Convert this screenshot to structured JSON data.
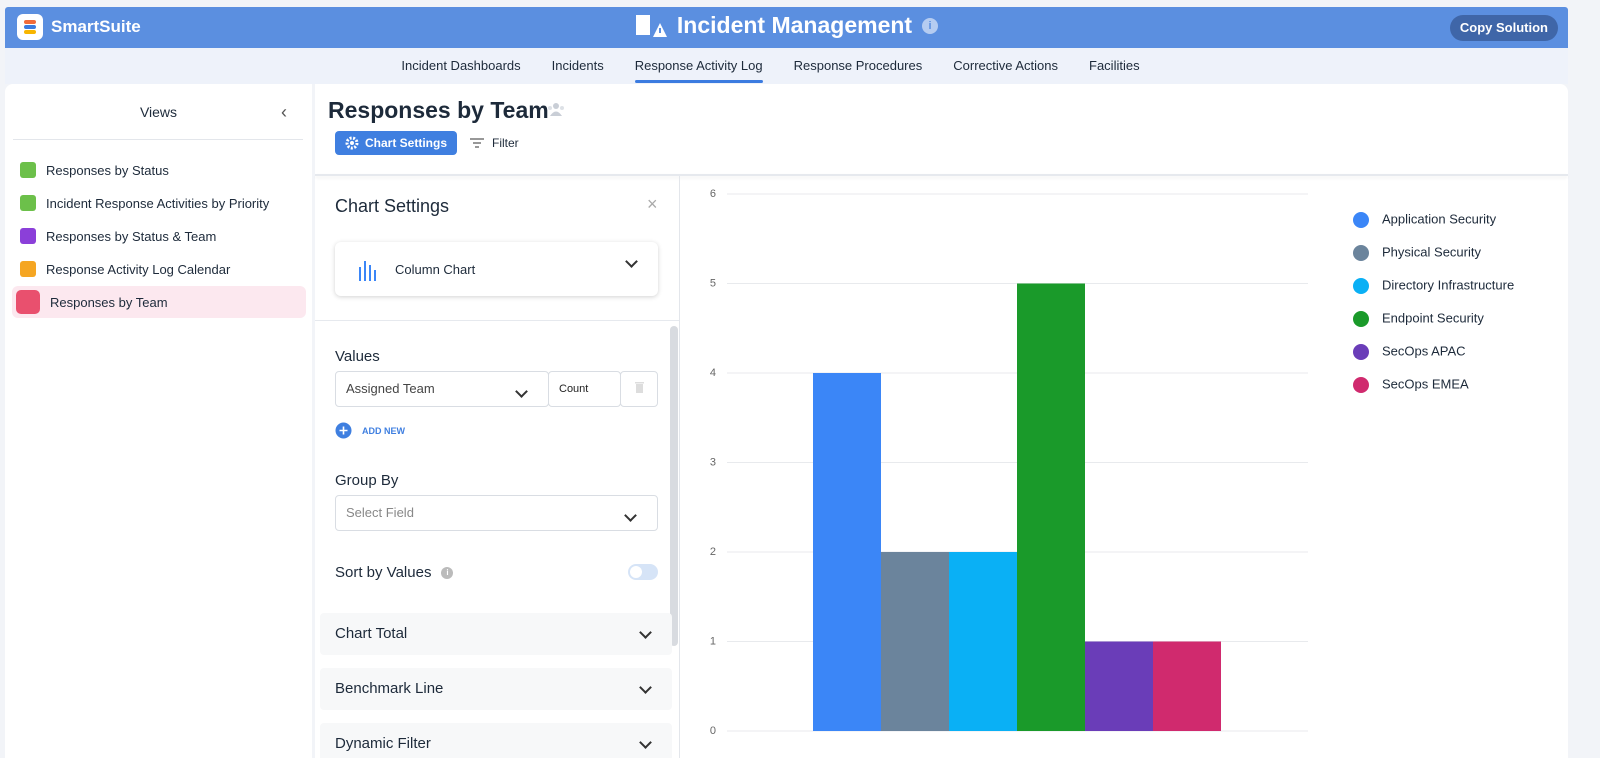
{
  "header": {
    "brand": "SmartSuite",
    "title": "Incident Management",
    "button": "Copy Solution"
  },
  "nav": {
    "tabs": [
      "Incident Dashboards",
      "Incidents",
      "Response Activity Log",
      "Response Procedures",
      "Corrective Actions",
      "Facilities"
    ],
    "active": 2
  },
  "sidebar": {
    "title": "Views",
    "items": [
      "Responses by Status",
      "Incident Response Activities by Priority",
      "Responses by Status & Team",
      "Response Activity Log Calendar",
      "Responses by Team"
    ],
    "active": 4
  },
  "view": {
    "title": "Responses by Team",
    "buttons": [
      "Chart Settings",
      "Filter"
    ]
  },
  "settings": {
    "title": "Chart Settings",
    "chart_type": "Column Chart",
    "values_label": "Values",
    "value_field": "Assigned Team",
    "aggregate": "Count",
    "add_new": "ADD NEW",
    "group_by_label": "Group By",
    "group_by_placeholder": "Select Field",
    "sort_label": "Sort by Values",
    "sections": [
      "Chart Total",
      "Benchmark Line",
      "Dynamic Filter"
    ]
  },
  "chart_data": {
    "type": "bar",
    "categories": [
      null
    ],
    "series": [
      {
        "name": "Application Security",
        "color": "#3b86f7",
        "values": [
          4
        ]
      },
      {
        "name": "Physical Security",
        "color": "#6b849c",
        "values": [
          2
        ]
      },
      {
        "name": "Directory Infrastructure",
        "color": "#0ab0f5",
        "values": [
          2
        ]
      },
      {
        "name": "Endpoint Security",
        "color": "#1a9a2a",
        "values": [
          5
        ]
      },
      {
        "name": "SecOps APAC",
        "color": "#6a3db8",
        "values": [
          1
        ]
      },
      {
        "name": "SecOps EMEA",
        "color": "#d02a6e",
        "values": [
          1
        ]
      }
    ],
    "ylim": [
      0,
      6
    ],
    "yticks": [
      0,
      1,
      2,
      3,
      4,
      5,
      6
    ],
    "grid": true,
    "legend": "right"
  }
}
